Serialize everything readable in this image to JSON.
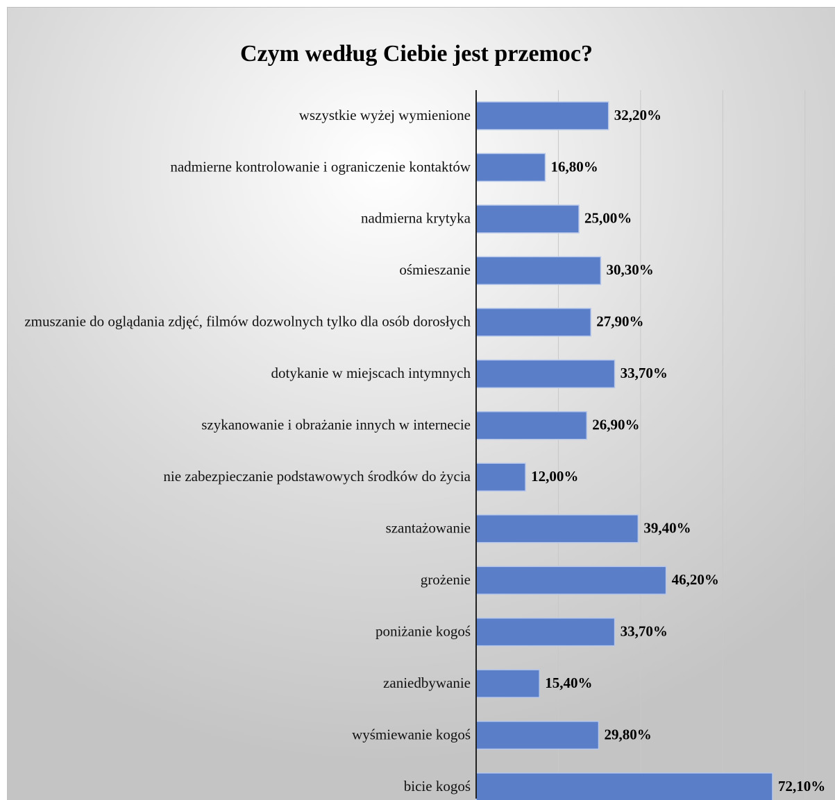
{
  "chart_data": {
    "type": "barh",
    "title": "Czym według Ciebie jest przemoc?",
    "categories": [
      "wszystkie wyżej wymienione",
      "nadmierne kontrolowanie i ograniczenie kontaktów",
      "nadmierna krytyka",
      "ośmieszanie",
      "zmuszanie do oglądania zdjęć, filmów dozwolnych tylko dla osób dorosłych",
      "dotykanie w miejscach intymnych",
      "szykanowanie i obrażanie innych w internecie",
      "nie zabezpieczanie podstawowych środków do życia",
      "szantażowanie",
      "grożenie",
      "poniżanie kogoś",
      "zaniedbywanie",
      "wyśmiewanie kogoś",
      "bicie kogoś"
    ],
    "values": [
      32.2,
      16.8,
      25.0,
      30.3,
      27.9,
      33.7,
      26.9,
      12.0,
      39.4,
      46.2,
      33.7,
      15.4,
      29.8,
      72.1
    ],
    "value_labels": [
      "32,20%",
      "16,80%",
      "25,00%",
      "30,30%",
      "27,90%",
      "33,70%",
      "26,90%",
      "12,00%",
      "39,40%",
      "46,20%",
      "33,70%",
      "15,40%",
      "29,80%",
      "72,10%"
    ],
    "color": "#5a7fc8",
    "xlim": [
      0,
      85
    ],
    "xticks": [
      0,
      20,
      40,
      60,
      80
    ],
    "grid": true
  }
}
